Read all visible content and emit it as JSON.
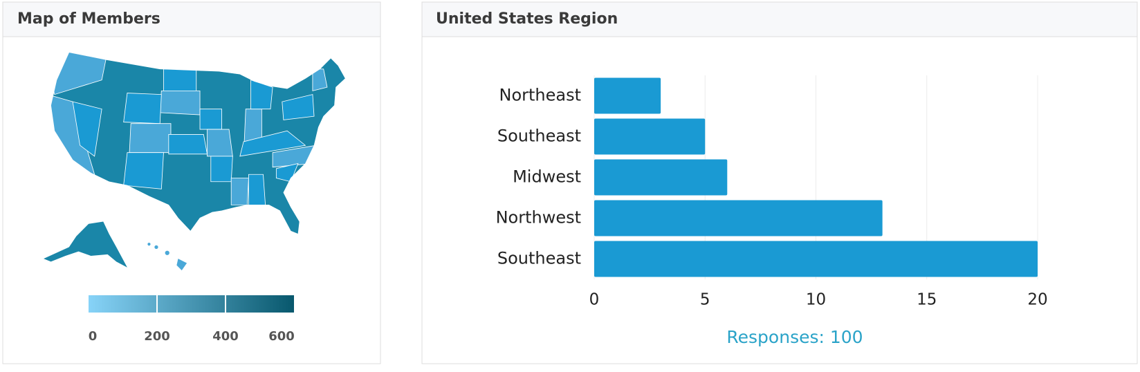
{
  "map": {
    "title": "Map of Members",
    "legend": {
      "range": [
        0,
        600
      ],
      "ticks": [
        0,
        200,
        400,
        600
      ],
      "colors": [
        "#87d3f8",
        "#08586d"
      ]
    }
  },
  "chart_data": {
    "type": "bar",
    "orientation": "horizontal",
    "title": "United States Region",
    "categories": [
      "Northeast",
      "Southeast",
      "Midwest",
      "Northwest",
      "Southeast"
    ],
    "values": [
      3,
      5,
      6,
      13,
      20
    ],
    "color": "#1a9ad3",
    "xlim": [
      0,
      20
    ],
    "xticks": [
      0,
      5,
      10,
      15,
      20
    ],
    "grid": true,
    "annotation": "Responses: 100"
  }
}
